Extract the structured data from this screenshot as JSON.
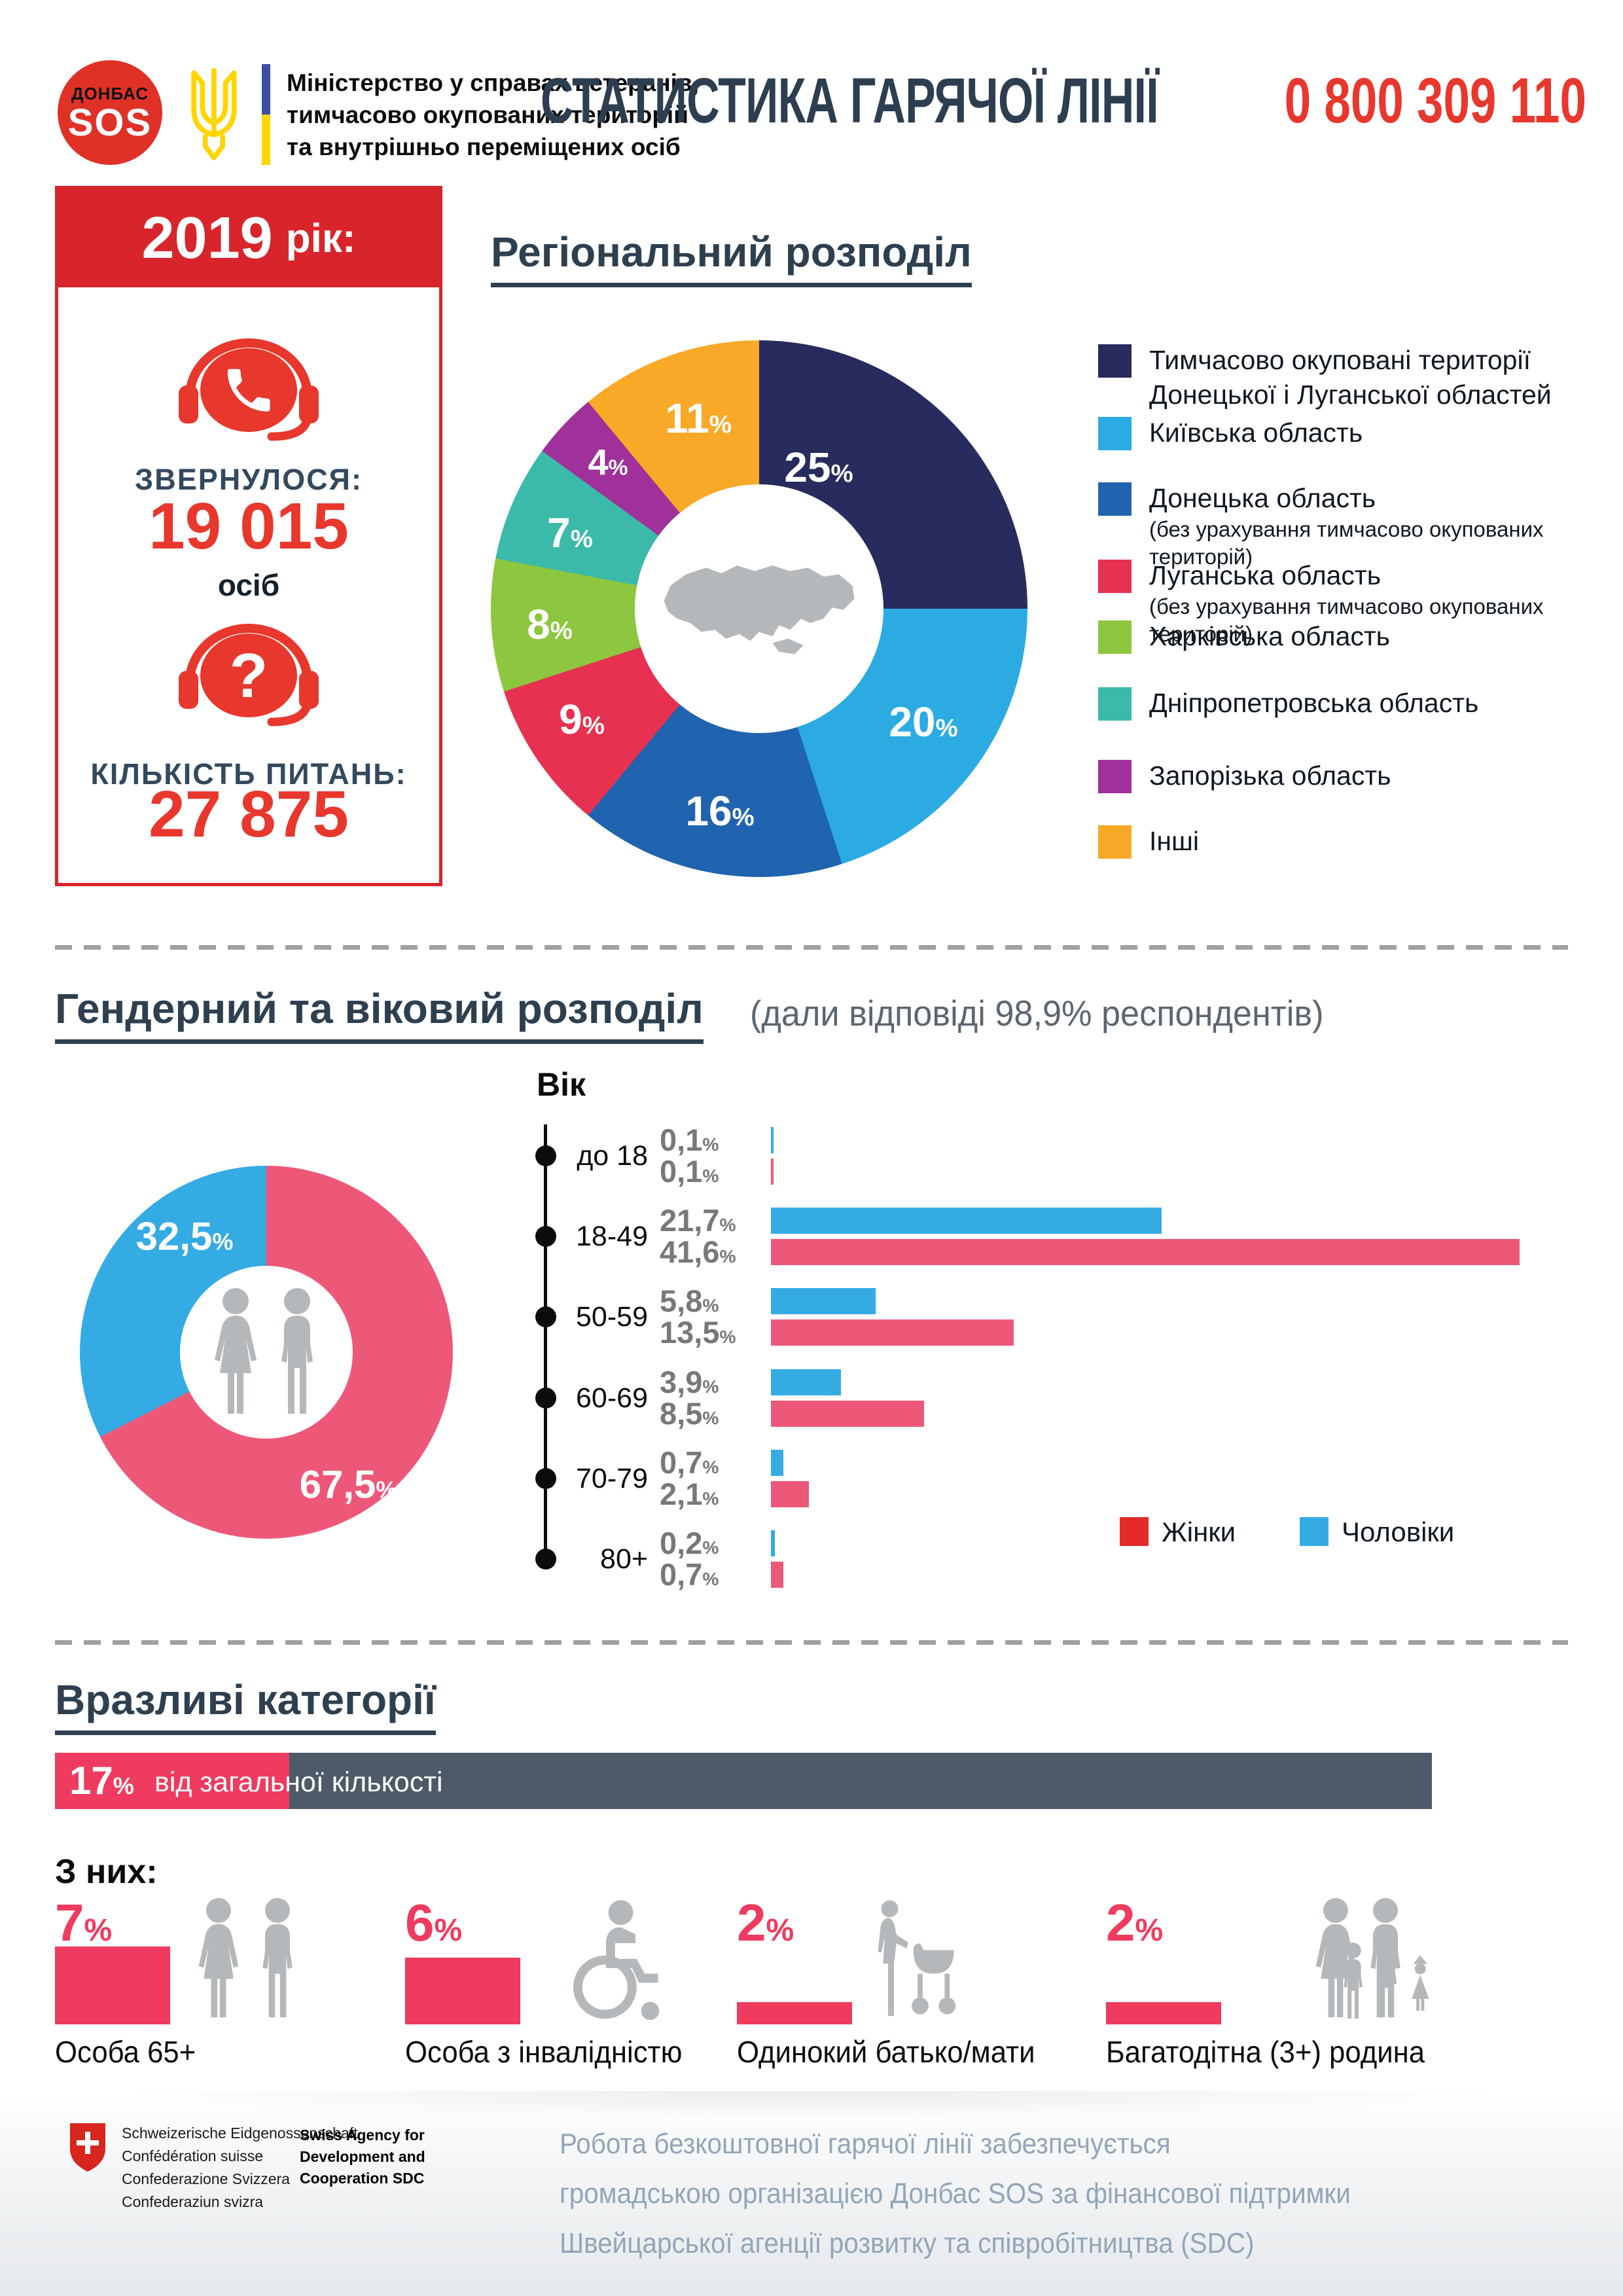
{
  "header": {
    "logo_top": "ДОНБАС",
    "logo_bottom": "SOS",
    "ministry_lines": [
      "Міністерство у справах ветеранів,",
      "тимчасово окупованих територій",
      "та внутрішньо переміщених осіб"
    ],
    "title": "СТАТИСТИКА ГАРЯЧОЇ ЛІНІЇ",
    "phone": "0 800 309 110"
  },
  "summary": {
    "year": "2019",
    "year_suffix": "рік:",
    "calls_label": "ЗВЕРНУЛОСЯ:",
    "calls_value": "19 015",
    "calls_unit": "осіб",
    "questions_label": "КІЛЬКІСТЬ ПИТАНЬ:",
    "questions_value": "27 875"
  },
  "sections": {
    "region_title": "Регіональний розподіл",
    "gender_title": "Гендерний та віковий розподіл",
    "gender_note": "(дали відповіді 98,9% респондентів)",
    "age_axis_title": "Вік",
    "vulnerable_title": "Вразливі категорії",
    "vulnerable_subtitle": "З них:"
  },
  "colors": {
    "brand_red": "#d8242b",
    "accent_red": "#e8372c",
    "title_navy": "#2c3e50",
    "slate_bar": "#4e5a68",
    "vulnerable_pink": "#ee3b5f",
    "icon_gray": "#b5b8ba"
  },
  "chart_data": [
    {
      "type": "pie",
      "title": "Регіональний розподіл",
      "hole": true,
      "center_icon": "ukraine-map",
      "slices": [
        {
          "label": "Тимчасово окуповані території Донецької і Луганської областей",
          "note": "",
          "value": 25,
          "pct": "25",
          "color": "#282b5d"
        },
        {
          "label": "Київська область",
          "note": "",
          "value": 20,
          "pct": "20",
          "color": "#2babe2"
        },
        {
          "label": "Донецька область",
          "note": "(без урахування тимчасово окупованих територій)",
          "value": 16,
          "pct": "16",
          "color": "#2063af"
        },
        {
          "label": "Луганська область",
          "note": "(без урахування тимчасово окупованих територій)",
          "value": 9,
          "pct": "9",
          "color": "#e73150"
        },
        {
          "label": "Харківська область",
          "note": "",
          "value": 8,
          "pct": "8",
          "color": "#8dc63f"
        },
        {
          "label": "Дніпропетровська область",
          "note": "",
          "value": 7,
          "pct": "7",
          "color": "#3bb9a9"
        },
        {
          "label": "Запорізька область",
          "note": "",
          "value": 4,
          "pct": "4",
          "color": "#a0309a"
        },
        {
          "label": "Інші",
          "note": "",
          "value": 11,
          "pct": "11",
          "color": "#f9a928"
        }
      ]
    },
    {
      "type": "pie",
      "title": "Гендерний розподіл",
      "hole": true,
      "slices": [
        {
          "label": "Жінки",
          "value": 67.5,
          "pct": "67,5",
          "color": "#ee5878"
        },
        {
          "label": "Чоловіки",
          "value": 32.5,
          "pct": "32,5",
          "color": "#35abe4"
        }
      ]
    },
    {
      "type": "bar",
      "orientation": "horizontal",
      "title": "Вік",
      "categories": [
        "до 18",
        "18-49",
        "50-59",
        "60-69",
        "70-79",
        "80+"
      ],
      "series": [
        {
          "name": "Чоловіки",
          "color": "#35abe4",
          "values": [
            0.1,
            21.7,
            5.8,
            3.9,
            0.7,
            0.2
          ],
          "labels": [
            "0,1",
            "21,7",
            "5,8",
            "3,9",
            "0,7",
            "0,2"
          ]
        },
        {
          "name": "Жінки",
          "color": "#ee5878",
          "values": [
            0.1,
            41.6,
            13.5,
            8.5,
            2.1,
            0.7
          ],
          "labels": [
            "0,1",
            "41,6",
            "13,5",
            "8,5",
            "2,1",
            "0,7"
          ]
        }
      ],
      "legend": {
        "women": "Жінки",
        "women_color": "#e32a26",
        "men": "Чоловіки",
        "men_color": "#35abe4"
      }
    },
    {
      "type": "bar",
      "title": "Вразливі категорії",
      "total_share": 17,
      "total_pct": "17",
      "total_label": "від загальної кількості",
      "categories": [
        "Особа 65+",
        "Особа з інвалідністю",
        "Одинокий батько/мати",
        "Багатодітна (3+) родина"
      ],
      "values": [
        7,
        6,
        2,
        2
      ],
      "pcts": [
        "7",
        "6",
        "2",
        "2"
      ]
    }
  ],
  "footer": {
    "swiss_lines": [
      "Schweizerische Eidgenossenschaft",
      "Confédération suisse",
      "Confederazione Svizzera",
      "Confederaziun svizra"
    ],
    "sdc_bold": "Swiss Agency for Development and Cooperation SDC",
    "credit_lines": [
      "Робота безкоштовної гарячої лінії забезпечується",
      "громадською організацією Донбас SOS за фінансової підтримки",
      "Швейцарської агенції розвитку та співробітництва (SDC)"
    ]
  }
}
